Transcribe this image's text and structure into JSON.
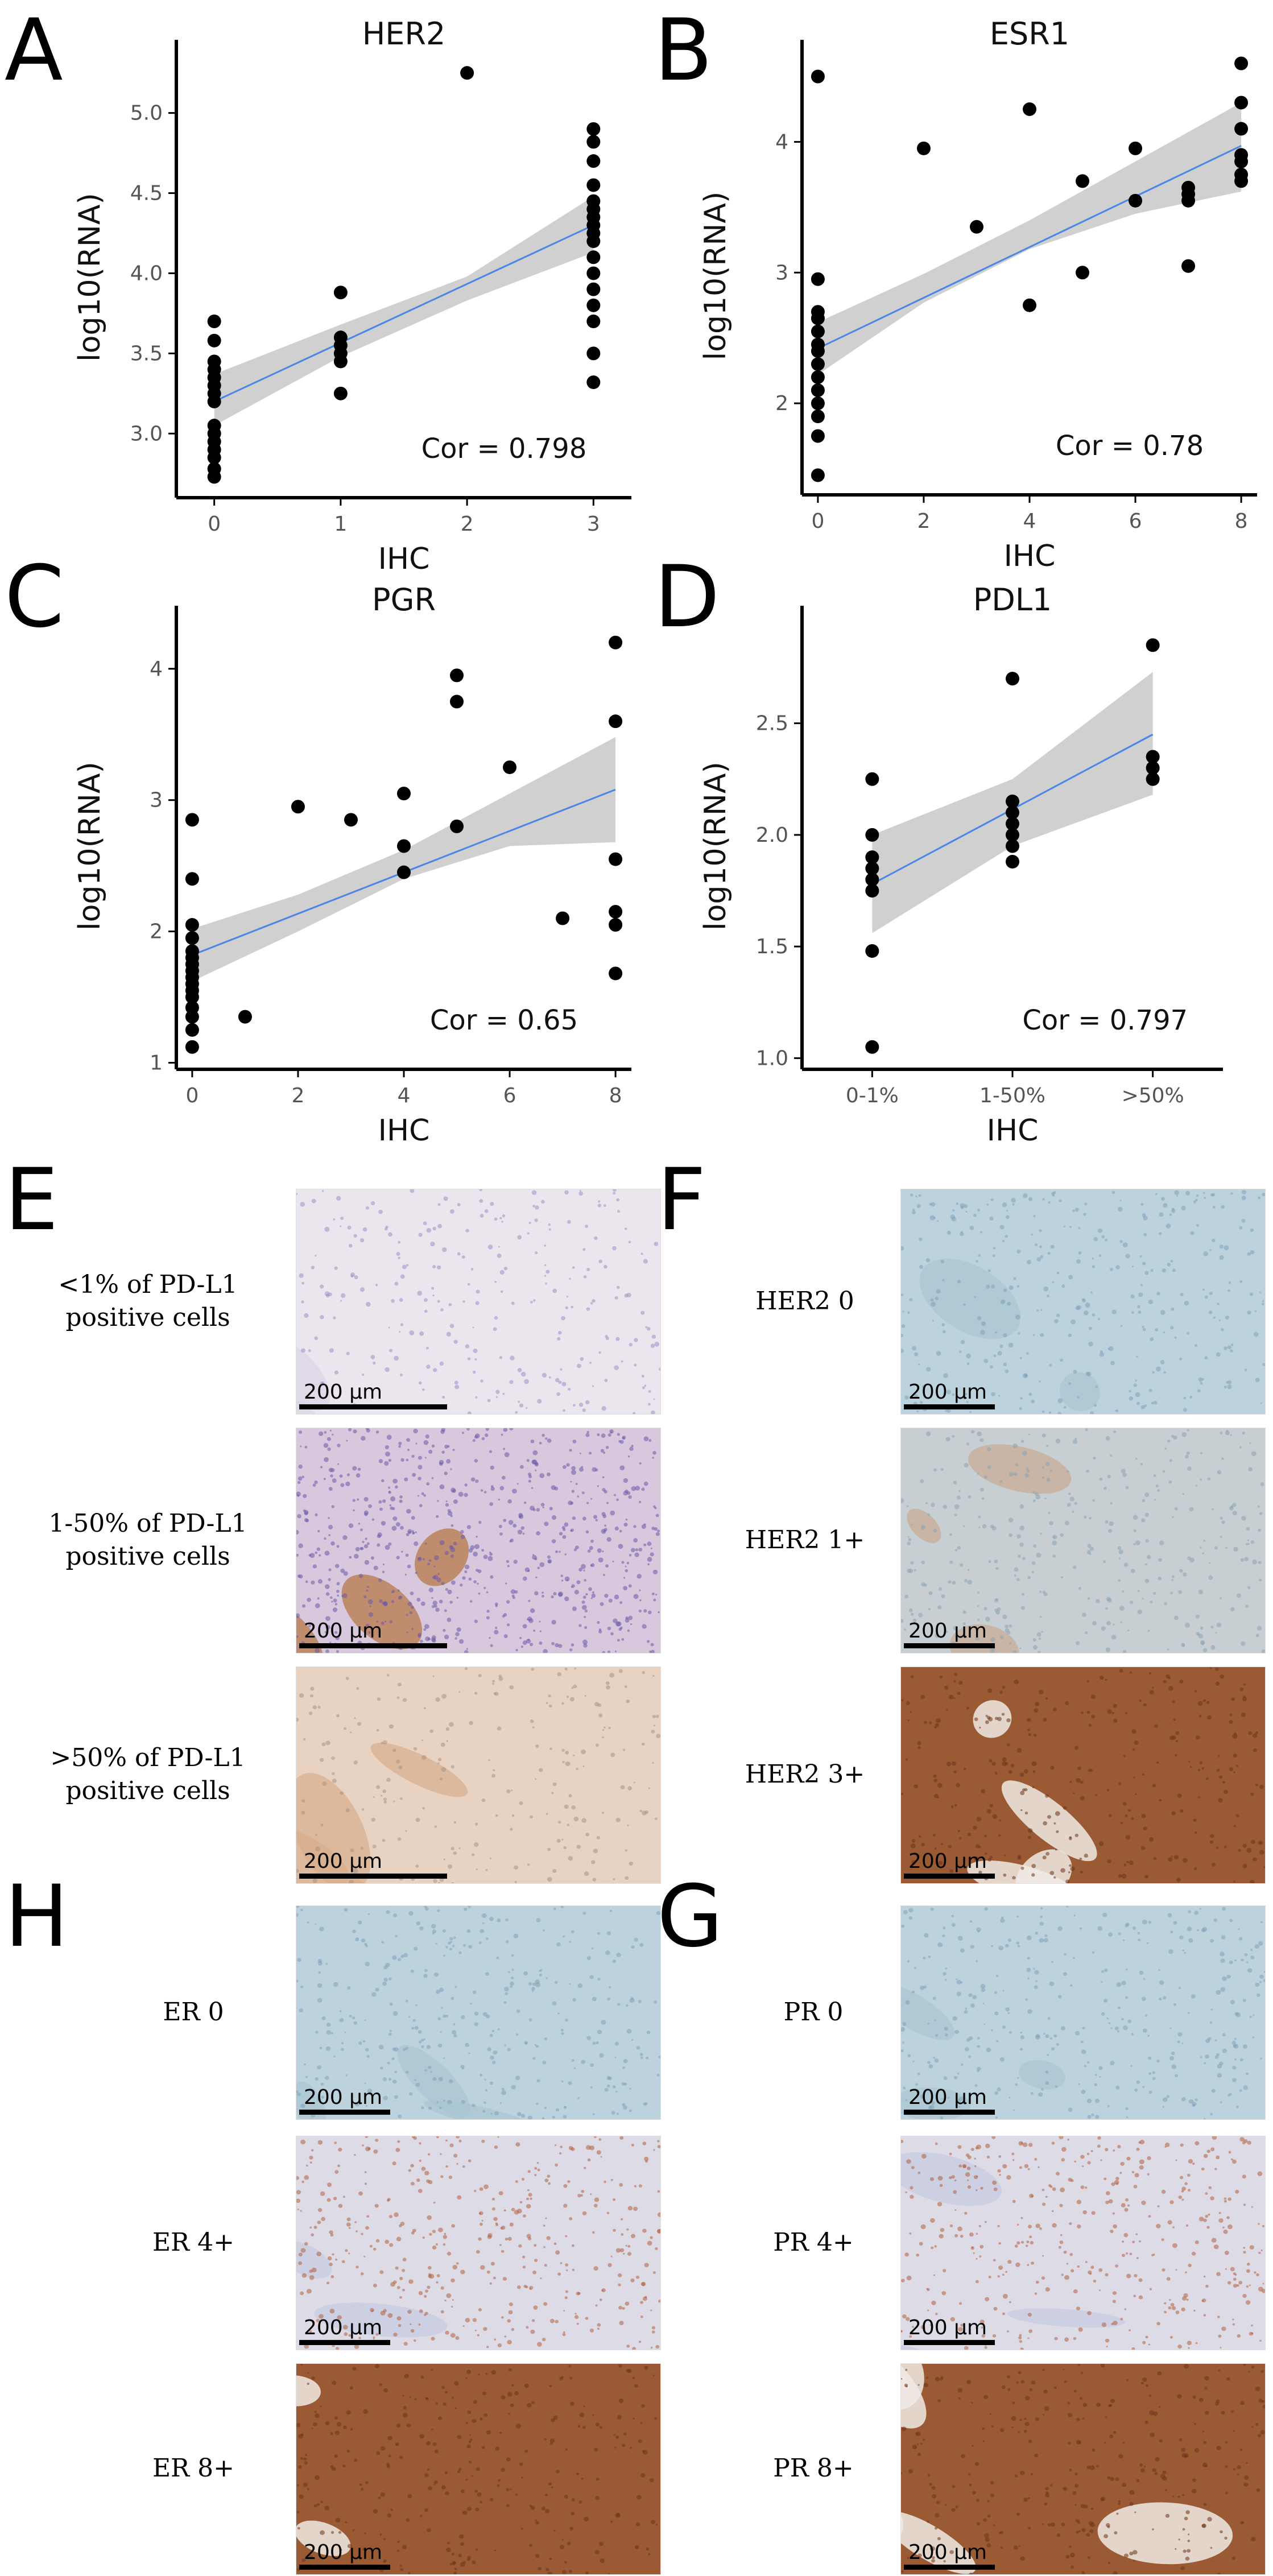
{
  "panel_letters": {
    "A": "A",
    "B": "B",
    "C": "C",
    "D": "D",
    "E": "E",
    "F": "F",
    "G": "G",
    "H": "H"
  },
  "chart_data": [
    {
      "id": "A",
      "type": "scatter",
      "title": "HER2",
      "xlabel": "IHC",
      "ylabel": "log10(RNA)",
      "xlim": [
        -0.3,
        3.3
      ],
      "ylim": [
        2.6,
        5.35
      ],
      "xticks": [
        0,
        1,
        2,
        3
      ],
      "xtick_labels": [
        "0",
        "1",
        "2",
        "3"
      ],
      "yticks": [
        3.0,
        3.5,
        4.0,
        4.5,
        5.0
      ],
      "ytick_labels": [
        "3.0",
        "3.5",
        "4.0",
        "4.5",
        "5.0"
      ],
      "points": [
        [
          0,
          3.7
        ],
        [
          0,
          3.58
        ],
        [
          0,
          3.45
        ],
        [
          0,
          3.4
        ],
        [
          0,
          3.35
        ],
        [
          0,
          3.3
        ],
        [
          0,
          3.25
        ],
        [
          0,
          3.2
        ],
        [
          0,
          3.05
        ],
        [
          0,
          3.0
        ],
        [
          0,
          2.95
        ],
        [
          0,
          2.9
        ],
        [
          0,
          2.85
        ],
        [
          0,
          2.78
        ],
        [
          0,
          2.73
        ],
        [
          1,
          3.88
        ],
        [
          1,
          3.6
        ],
        [
          1,
          3.55
        ],
        [
          1,
          3.5
        ],
        [
          1,
          3.45
        ],
        [
          1,
          3.25
        ],
        [
          2,
          5.25
        ],
        [
          3,
          4.9
        ],
        [
          3,
          4.82
        ],
        [
          3,
          4.7
        ],
        [
          3,
          4.55
        ],
        [
          3,
          4.45
        ],
        [
          3,
          4.4
        ],
        [
          3,
          4.35
        ],
        [
          3,
          4.3
        ],
        [
          3,
          4.25
        ],
        [
          3,
          4.2
        ],
        [
          3,
          4.1
        ],
        [
          3,
          4.0
        ],
        [
          3,
          3.9
        ],
        [
          3,
          3.8
        ],
        [
          3,
          3.7
        ],
        [
          3,
          3.5
        ],
        [
          3,
          3.32
        ]
      ],
      "fit": {
        "x": [
          0,
          3
        ],
        "y": [
          3.2,
          4.3
        ]
      },
      "ci": {
        "lower": [
          3.05,
          3.48,
          3.83,
          4.13
        ],
        "upper": [
          3.37,
          3.68,
          3.98,
          4.48
        ]
      },
      "annotation": "Cor = 0.798"
    },
    {
      "id": "B",
      "type": "scatter",
      "title": "ESR1",
      "xlabel": "IHC",
      "ylabel": "log10(RNA)",
      "xlim": [
        -0.3,
        8.3
      ],
      "ylim": [
        1.3,
        4.65
      ],
      "xticks": [
        0,
        2,
        4,
        6,
        8
      ],
      "xtick_labels": [
        "0",
        "2",
        "4",
        "6",
        "8"
      ],
      "yticks": [
        2,
        3,
        4
      ],
      "ytick_labels": [
        "2",
        "3",
        "4"
      ],
      "points": [
        [
          0,
          4.5
        ],
        [
          0,
          2.95
        ],
        [
          0,
          2.7
        ],
        [
          0,
          2.65
        ],
        [
          0,
          2.55
        ],
        [
          0,
          2.45
        ],
        [
          0,
          2.4
        ],
        [
          0,
          2.3
        ],
        [
          0,
          2.2
        ],
        [
          0,
          2.1
        ],
        [
          0,
          2.0
        ],
        [
          0,
          1.9
        ],
        [
          0,
          1.75
        ],
        [
          0,
          1.45
        ],
        [
          2,
          3.95
        ],
        [
          3,
          3.35
        ],
        [
          4,
          4.25
        ],
        [
          4,
          2.75
        ],
        [
          5,
          3.7
        ],
        [
          5,
          3.0
        ],
        [
          6,
          3.95
        ],
        [
          6,
          3.55
        ],
        [
          7,
          3.65
        ],
        [
          7,
          3.6
        ],
        [
          7,
          3.55
        ],
        [
          7,
          3.05
        ],
        [
          8,
          4.6
        ],
        [
          8,
          4.3
        ],
        [
          8,
          4.1
        ],
        [
          8,
          3.9
        ],
        [
          8,
          3.85
        ],
        [
          8,
          3.75
        ],
        [
          8,
          3.7
        ]
      ],
      "fit": {
        "x": [
          0,
          8
        ],
        "y": [
          2.42,
          3.97
        ]
      },
      "ci": {
        "lower": [
          2.22,
          2.77,
          3.18,
          3.45,
          3.62
        ],
        "upper": [
          2.62,
          2.99,
          3.4,
          3.85,
          4.3
        ]
      },
      "annotation": "Cor = 0.78"
    },
    {
      "id": "C",
      "type": "scatter",
      "title": "PGR",
      "xlabel": "IHC",
      "ylabel": "log10(RNA)",
      "xlim": [
        -0.3,
        8.3
      ],
      "ylim": [
        0.95,
        4.35
      ],
      "xticks": [
        0,
        2,
        4,
        6,
        8
      ],
      "xtick_labels": [
        "0",
        "2",
        "4",
        "6",
        "8"
      ],
      "yticks": [
        1,
        2,
        3,
        4
      ],
      "ytick_labels": [
        "1",
        "2",
        "3",
        "4"
      ],
      "points": [
        [
          0,
          2.85
        ],
        [
          0,
          2.4
        ],
        [
          0,
          2.05
        ],
        [
          0,
          1.95
        ],
        [
          0,
          1.85
        ],
        [
          0,
          1.8
        ],
        [
          0,
          1.75
        ],
        [
          0,
          1.7
        ],
        [
          0,
          1.65
        ],
        [
          0,
          1.6
        ],
        [
          0,
          1.55
        ],
        [
          0,
          1.5
        ],
        [
          0,
          1.42
        ],
        [
          0,
          1.35
        ],
        [
          0,
          1.25
        ],
        [
          0,
          1.12
        ],
        [
          1,
          1.35
        ],
        [
          2,
          2.95
        ],
        [
          3,
          2.85
        ],
        [
          4,
          3.05
        ],
        [
          4,
          2.65
        ],
        [
          4,
          2.45
        ],
        [
          5,
          3.95
        ],
        [
          5,
          3.75
        ],
        [
          5,
          2.8
        ],
        [
          6,
          3.25
        ],
        [
          7,
          2.1
        ],
        [
          8,
          4.2
        ],
        [
          8,
          3.6
        ],
        [
          8,
          2.55
        ],
        [
          8,
          2.15
        ],
        [
          8,
          2.05
        ],
        [
          8,
          1.68
        ]
      ],
      "fit": {
        "x": [
          0,
          8
        ],
        "y": [
          1.82,
          3.08
        ]
      },
      "ci": {
        "lower": [
          1.62,
          2.0,
          2.4,
          2.65,
          2.68
        ],
        "upper": [
          2.02,
          2.28,
          2.62,
          3.05,
          3.48
        ]
      },
      "annotation": "Cor = 0.65"
    },
    {
      "id": "D",
      "type": "scatter",
      "title": "PDL1",
      "xlabel": "IHC",
      "ylabel": "log10(RNA)",
      "xlim": [
        -0.5,
        2.5
      ],
      "ylim": [
        0.95,
        2.95
      ],
      "xticks": [
        0,
        1,
        2
      ],
      "xtick_labels": [
        "0-1%",
        "1-50%",
        ">50%"
      ],
      "yticks": [
        1.0,
        1.5,
        2.0,
        2.5
      ],
      "ytick_labels": [
        "1.0",
        "1.5",
        "2.0",
        "2.5"
      ],
      "points": [
        [
          0,
          2.25
        ],
        [
          0,
          2.0
        ],
        [
          0,
          1.9
        ],
        [
          0,
          1.85
        ],
        [
          0,
          1.8
        ],
        [
          0,
          1.75
        ],
        [
          0,
          1.48
        ],
        [
          0,
          1.05
        ],
        [
          1,
          2.7
        ],
        [
          1,
          2.15
        ],
        [
          1,
          2.1
        ],
        [
          1,
          2.05
        ],
        [
          1,
          2.0
        ],
        [
          1,
          1.95
        ],
        [
          1,
          1.88
        ],
        [
          2,
          2.85
        ],
        [
          2,
          2.35
        ],
        [
          2,
          2.3
        ],
        [
          2,
          2.25
        ]
      ],
      "fit": {
        "x": [
          0,
          2
        ],
        "y": [
          1.78,
          2.45
        ]
      },
      "ci": {
        "lower": [
          1.56,
          1.95,
          2.18
        ],
        "upper": [
          2.0,
          2.25,
          2.73
        ]
      },
      "annotation": "Cor = 0.797"
    }
  ],
  "micrographs": {
    "scale_bar_text": "200 μm",
    "E": [
      "<1% of PD-L1\npositive cells",
      "1-50% of PD-L1\npositive cells",
      ">50% of PD-L1\npositive cells"
    ],
    "F": [
      "HER2 0",
      "HER2 1+",
      "HER2 3+"
    ],
    "H": [
      "ER 0",
      "ER 4+",
      "ER 8+"
    ],
    "G": [
      "PR 0",
      "PR 4+",
      "PR 8+"
    ],
    "colors": {
      "pale_violet": "#ebe6ee",
      "blue_counterstain": "#bcd2dd",
      "brown_strong": "#9a5a34",
      "brown_medium": "#b88a66",
      "purple_nuclei": "#6e5aa8"
    }
  }
}
